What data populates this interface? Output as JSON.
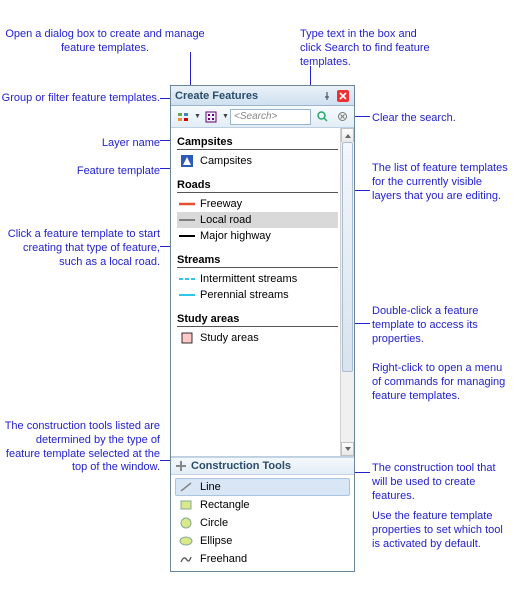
{
  "window": {
    "title": "Create Features"
  },
  "toolbar": {
    "search_placeholder": "<Search>"
  },
  "layers": [
    {
      "name": "Campsites",
      "templates": [
        {
          "label": "Campsites",
          "symbol": "point-blue",
          "selected": false
        }
      ]
    },
    {
      "name": "Roads",
      "templates": [
        {
          "label": "Freeway",
          "symbol": "line-red",
          "selected": false
        },
        {
          "label": "Local road",
          "symbol": "line-gray",
          "selected": true
        },
        {
          "label": "Major highway",
          "symbol": "line-black",
          "selected": false
        }
      ]
    },
    {
      "name": "Streams",
      "templates": [
        {
          "label": "Intermittent streams",
          "symbol": "dash-cyan",
          "selected": false
        },
        {
          "label": "Perennial streams",
          "symbol": "line-cyan",
          "selected": false
        }
      ]
    },
    {
      "name": "Study areas",
      "templates": [
        {
          "label": "Study areas",
          "symbol": "rect-pink",
          "selected": false
        }
      ]
    }
  ],
  "construction": {
    "title": "Construction Tools",
    "tools": [
      {
        "label": "Line",
        "symbol": "tool-line",
        "selected": true
      },
      {
        "label": "Rectangle",
        "symbol": "tool-rect",
        "selected": false
      },
      {
        "label": "Circle",
        "symbol": "tool-circle",
        "selected": false
      },
      {
        "label": "Ellipse",
        "symbol": "tool-ellipse",
        "selected": false
      },
      {
        "label": "Freehand",
        "symbol": "tool-free",
        "selected": false
      }
    ]
  },
  "annotations": {
    "a1": "Open a dialog box to create and manage feature templates.",
    "a2": "Type text in the box and click Search to find feature templates.",
    "a3": "Group or filter feature templates.",
    "a4": "Layer name",
    "a5": "Feature template",
    "a6": "Click a feature template to start creating that type of feature, such as a local road.",
    "a7": "Clear the search.",
    "a8": "The list of feature templates for the currently visible layers that you are editing.",
    "a9": "Double-click a feature template to access its properties.",
    "a10": "Right-click to open a menu of commands for managing feature templates.",
    "a11": "The construction tools listed are determined by the type of feature template selected at the top of the window.",
    "a12": "The construction tool that will be used to create features.",
    "a13": "Use the feature template properties to set which tool is activated by default."
  },
  "colors": {
    "annot": "#2222cc",
    "red": "#e94f2e",
    "gray": "#7f7f7f",
    "black": "#000000",
    "cyan": "#2ec6e9",
    "pink": "#ffc9c9",
    "blue": "#2b5bb8",
    "olive": "#d8e88a"
  }
}
